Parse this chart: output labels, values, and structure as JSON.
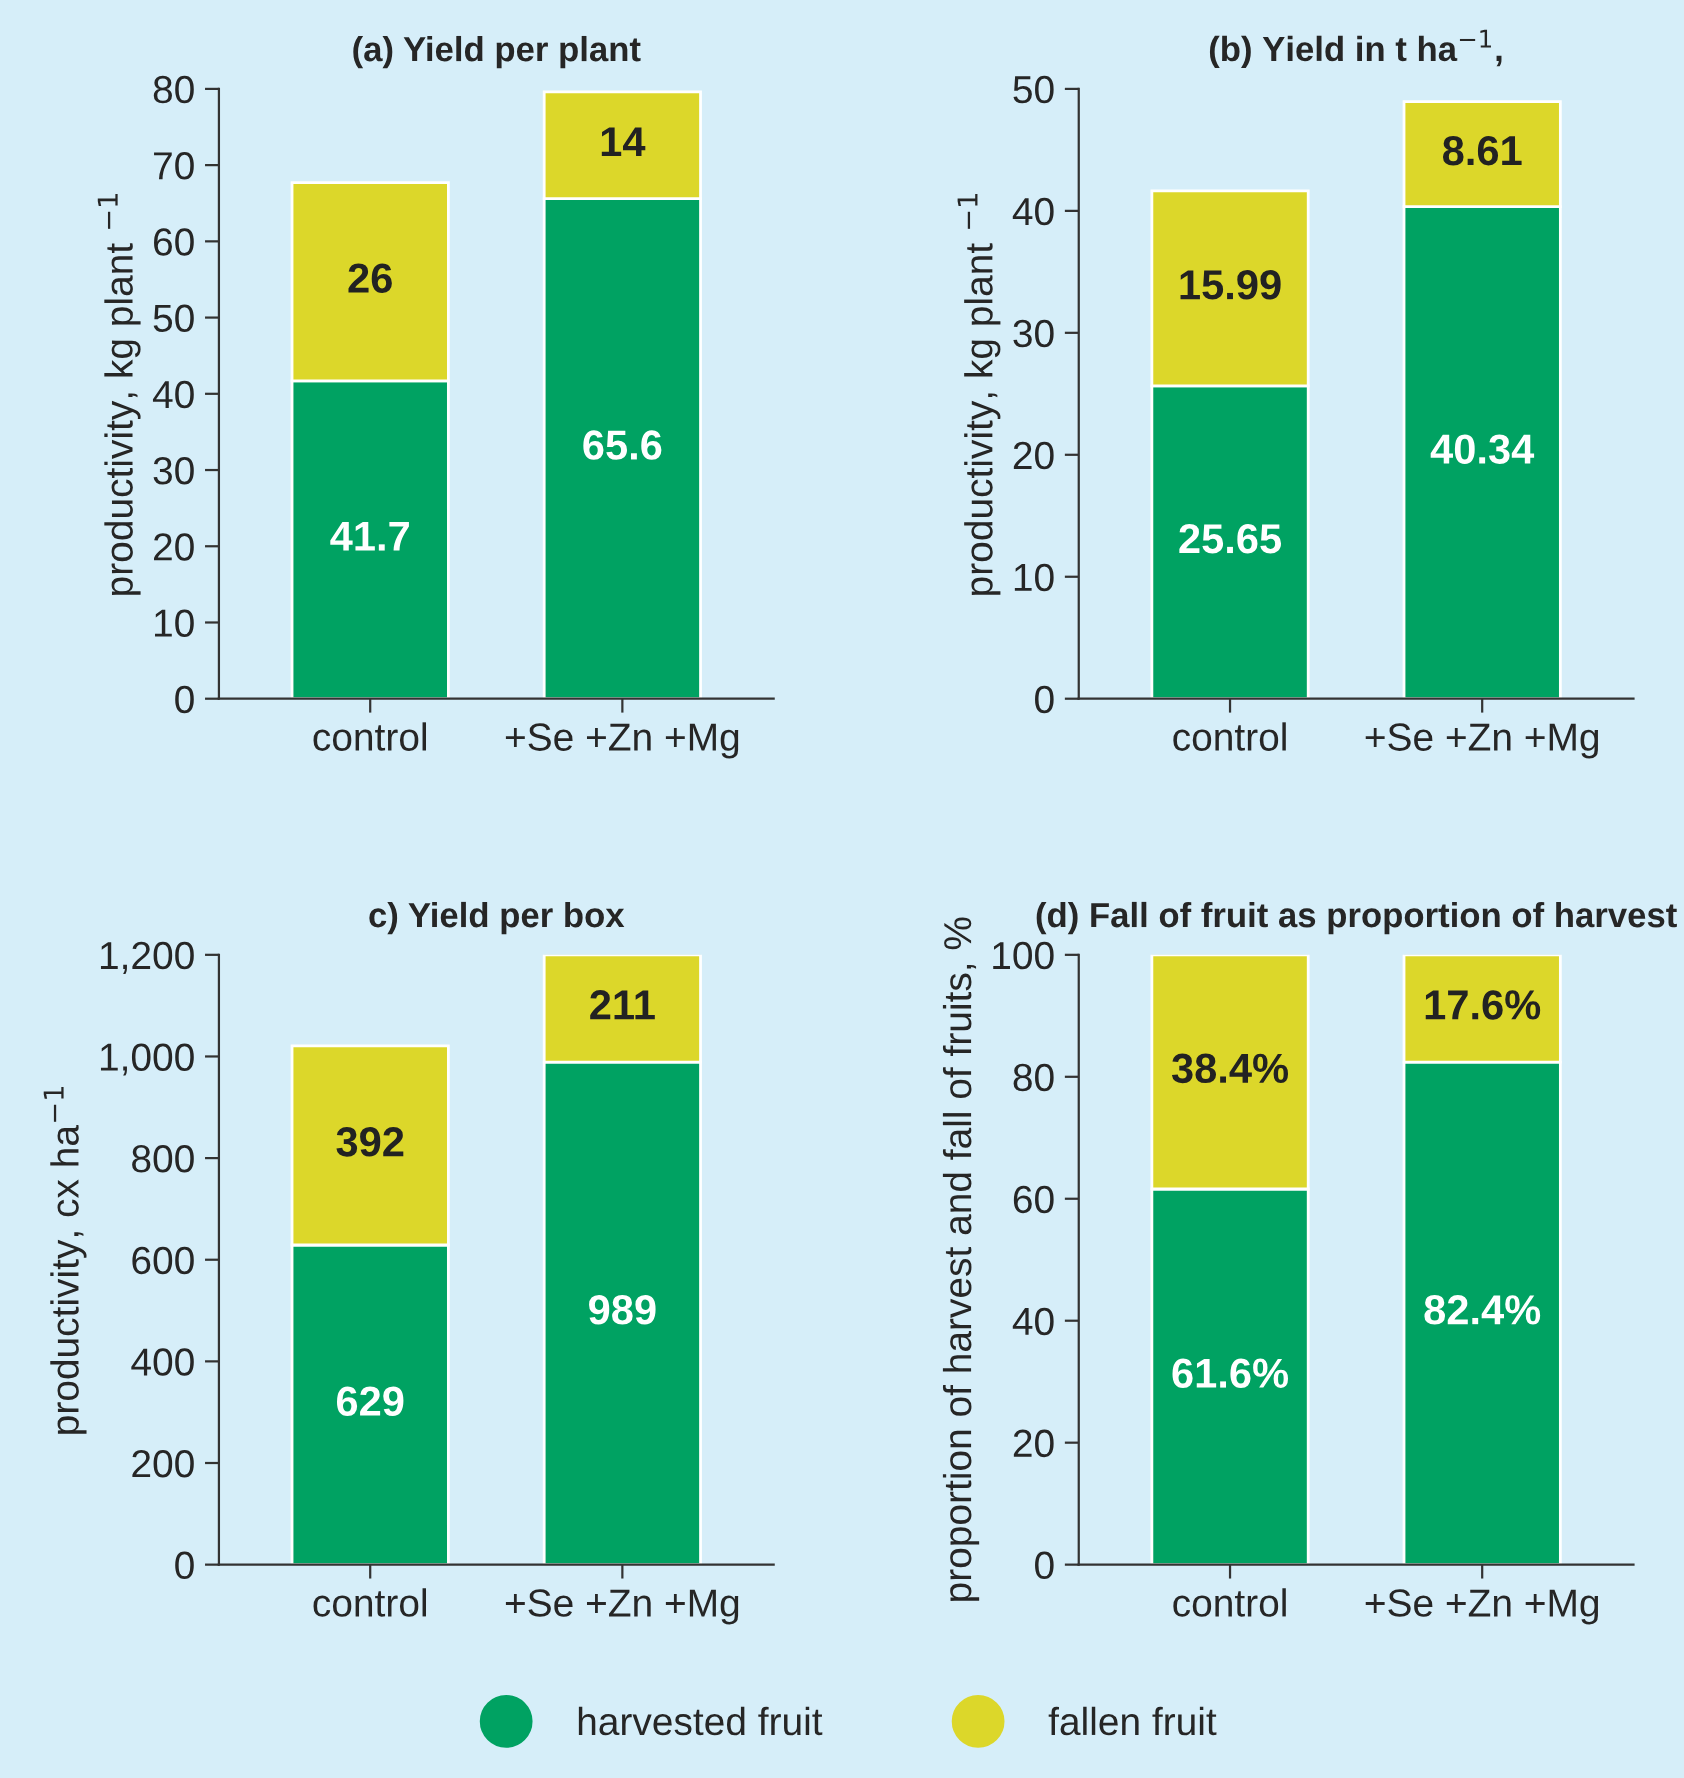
{
  "chart_data": [
    {
      "type": "bar",
      "title": "(a) Yield per plant",
      "ylabel": "productivity, kg plant $^{−1}$",
      "categories": [
        "control",
        "+Se +Zn +Mg"
      ],
      "stacked": true,
      "data_labels": true,
      "ylim": [
        0,
        80
      ],
      "yticks": [
        0,
        10,
        20,
        30,
        40,
        50,
        60,
        70,
        80
      ],
      "series": [
        {
          "color": "#00a262",
          "values": [
            41.7,
            65.6
          ]
        },
        {
          "color": "#dcd72a",
          "values": [
            26,
            14
          ]
        }
      ]
    },
    {
      "type": "bar",
      "title": "(b) Yield in t ha$^{−1}$,",
      "ylabel": "productivity, kg plant $^{−1}$",
      "categories": [
        "control",
        "+Se +Zn +Mg"
      ],
      "stacked": true,
      "data_labels": true,
      "ylim": [
        0,
        50
      ],
      "yticks": [
        0,
        10,
        20,
        30,
        40,
        50
      ],
      "series": [
        {
          "color": "#00a262",
          "values": [
            25.65,
            40.34
          ]
        },
        {
          "color": "#dcd72a",
          "values": [
            15.99,
            8.61
          ]
        }
      ]
    },
    {
      "type": "bar",
      "title": "c) Yield per box",
      "ylabel": "productivity, cx ha$^{−1}$",
      "categories": [
        "control",
        "+Se +Zn +Mg"
      ],
      "stacked": true,
      "data_labels": true,
      "ylim": [
        0,
        1200
      ],
      "yticks": [
        0,
        200,
        400,
        600,
        800,
        {
          "value": 1000,
          "label": "1,000"
        },
        {
          "value": 1200,
          "label": "1,200"
        }
      ],
      "series": [
        {
          "color": "#00a262",
          "values": [
            629,
            989
          ]
        },
        {
          "color": "#dcd72a",
          "values": [
            392,
            211
          ]
        }
      ]
    },
    {
      "type": "bar",
      "title": "(d) Fall of fruit as proportion of harvest",
      "ylabel": "proportion of harvest and fall of fruits, %",
      "categories": [
        "control",
        "+Se +Zn +Mg"
      ],
      "stacked": true,
      "ylim": [
        0,
        100
      ],
      "yticks": [
        0,
        20,
        40,
        60,
        80,
        100
      ],
      "legend": "bottom",
      "series": [
        {
          "name": "harvested fruit",
          "color": "#00a262",
          "values": [
            61.6,
            82.4
          ],
          "value_labels": [
            "61.6%",
            "82.4%"
          ]
        },
        {
          "name": "fallen fruit",
          "color": "#dcd72a",
          "values": [
            38.4,
            17.6
          ],
          "value_labels": [
            "38.4%",
            "17.6%"
          ]
        }
      ]
    }
  ]
}
